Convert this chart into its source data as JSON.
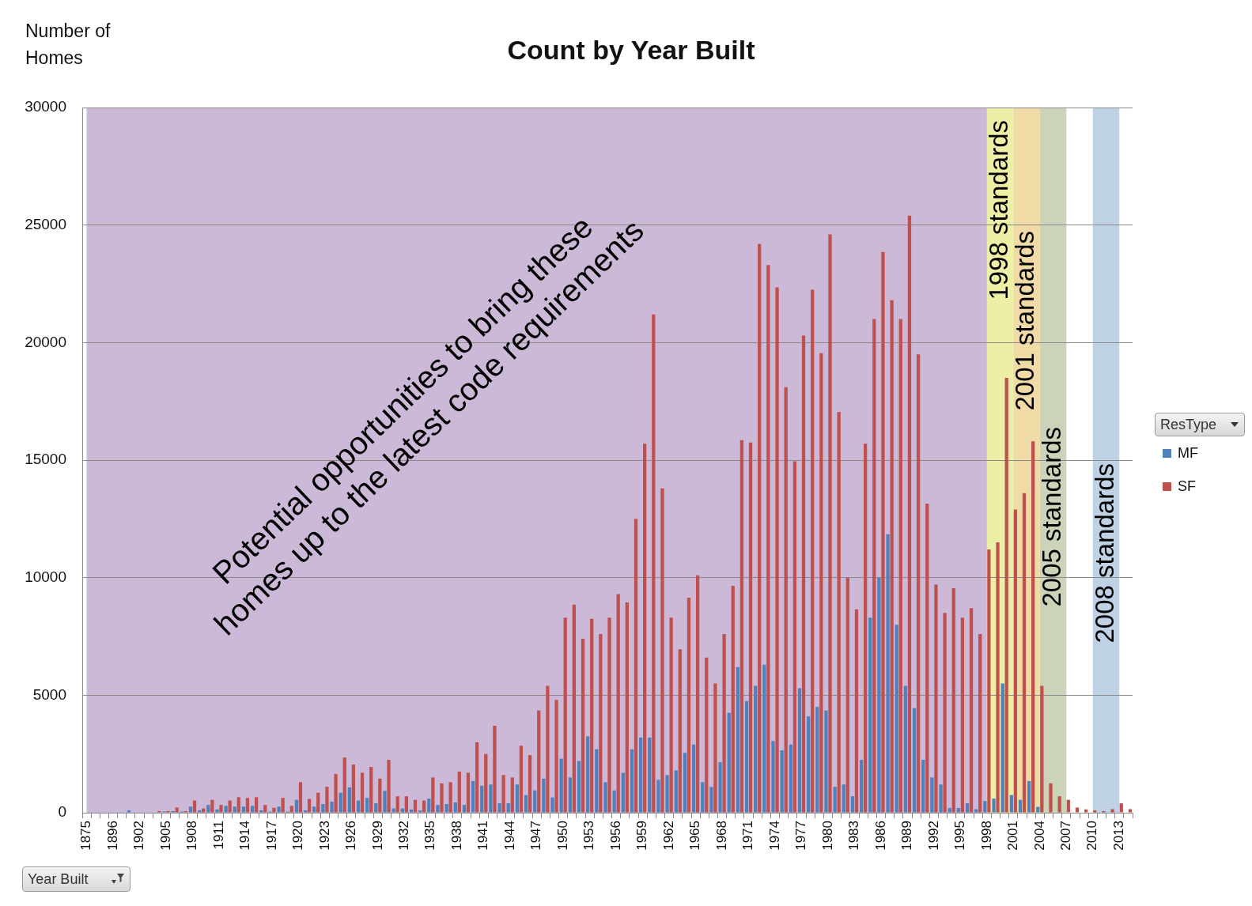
{
  "chart_data": {
    "type": "bar",
    "title": "Count by Year Built",
    "ylabel": "Number of Homes",
    "xlabel": "Year Built",
    "legend_title": "ResType",
    "legend": "right",
    "grid": "y",
    "categories": [
      "1875",
      null,
      null,
      "1896",
      null,
      null,
      "1902",
      null,
      null,
      "1905",
      null,
      null,
      "1908",
      null,
      null,
      "1911",
      null,
      null,
      "1914",
      null,
      null,
      "1917",
      null,
      null,
      "1920",
      null,
      null,
      "1923",
      null,
      null,
      "1926",
      null,
      null,
      "1929",
      null,
      null,
      "1932",
      null,
      null,
      "1935",
      null,
      null,
      "1938",
      null,
      null,
      "1941",
      null,
      null,
      "1944",
      null,
      null,
      "1947",
      null,
      null,
      "1950",
      null,
      null,
      "1953",
      null,
      null,
      "1956",
      null,
      null,
      "1959",
      null,
      null,
      "1962",
      null,
      null,
      "1965",
      null,
      null,
      "1968",
      null,
      null,
      "1971",
      null,
      null,
      "1974",
      null,
      null,
      "1977",
      null,
      null,
      "1980",
      null,
      null,
      "1983",
      null,
      null,
      "1986",
      null,
      null,
      "1989",
      null,
      null,
      "1992",
      null,
      null,
      "1995",
      null,
      null,
      "1998",
      null,
      null,
      "2001",
      null,
      null,
      "2004",
      null,
      null,
      "2007",
      null,
      null,
      "2010",
      null,
      null,
      "2013",
      null
    ],
    "series": [
      {
        "name": "MF",
        "color": "#4f81bd",
        "values": [
          0,
          0,
          0,
          0,
          0,
          100,
          0,
          0,
          0,
          50,
          70,
          50,
          260,
          100,
          330,
          140,
          290,
          260,
          260,
          290,
          100,
          50,
          260,
          50,
          550,
          100,
          260,
          370,
          470,
          850,
          1080,
          520,
          630,
          400,
          930,
          180,
          180,
          140,
          100,
          600,
          330,
          370,
          440,
          330,
          1350,
          1150,
          1200,
          400,
          400,
          1200,
          750,
          950,
          1450,
          650,
          2300,
          1500,
          2200,
          3250,
          2700,
          1300,
          950,
          1700,
          2700,
          3200,
          3200,
          1400,
          1600,
          1800,
          2550,
          2900,
          1300,
          1100,
          2150,
          4250,
          6200,
          4750,
          5400,
          6300,
          3050,
          2650,
          2900,
          5300,
          4100,
          4500,
          4350,
          1100,
          1200,
          700,
          2250,
          8300,
          10000,
          11850,
          8000,
          5400,
          4450,
          2250,
          1500,
          1200,
          200,
          200,
          400,
          150,
          500,
          600,
          5500,
          750,
          550,
          1350,
          250,
          0,
          0,
          0,
          0,
          0,
          0,
          0,
          0,
          0,
          0
        ]
      },
      {
        "name": "SF",
        "color": "#c0504d",
        "values": [
          0,
          0,
          0,
          0,
          0,
          0,
          0,
          0,
          70,
          70,
          220,
          70,
          520,
          180,
          550,
          330,
          520,
          660,
          630,
          660,
          330,
          210,
          630,
          290,
          1300,
          590,
          850,
          1100,
          1650,
          2350,
          2050,
          1700,
          1950,
          1450,
          2250,
          700,
          700,
          550,
          520,
          1500,
          1250,
          1300,
          1750,
          1700,
          3000,
          2500,
          3700,
          1600,
          1500,
          2850,
          2450,
          4350,
          5400,
          4800,
          8300,
          8850,
          7400,
          8250,
          7600,
          8300,
          9300,
          8950,
          12500,
          15700,
          21200,
          13800,
          8300,
          6950,
          9150,
          10100,
          6600,
          5500,
          7600,
          9650,
          15850,
          15750,
          24200,
          23300,
          22350,
          18100,
          14950,
          20300,
          22250,
          19550,
          24600,
          17050,
          10000,
          8650,
          15700,
          21000,
          23850,
          21800,
          21000,
          25400,
          19500,
          13150,
          9700,
          8500,
          9550,
          8300,
          8700,
          7600,
          11200,
          11500,
          18500,
          12900,
          13600,
          15800,
          5400,
          1250,
          700,
          550,
          220,
          140,
          100,
          70,
          150,
          400,
          150
        ]
      }
    ],
    "ylim": [
      0,
      30000
    ],
    "yticks": [
      0,
      5000,
      10000,
      15000,
      20000,
      25000,
      30000
    ],
    "bands": [
      {
        "axis": "x",
        "from": "1875",
        "to": "1998",
        "label": "Potential opportunities to bring these homes up to the latest code requirements",
        "color": "#cbb9d7"
      },
      {
        "axis": "x",
        "from": "1998",
        "to": "2001",
        "label": "1998 standards",
        "color": "#eeefa6"
      },
      {
        "axis": "x",
        "from": "2001",
        "to": "2004",
        "label": "2001 standards",
        "color": "#f0dba6"
      },
      {
        "axis": "x",
        "from": "2004",
        "to": "2007",
        "label": "2005 standards",
        "color": "#cbd3b8"
      },
      {
        "axis": "x",
        "from": "2010",
        "to": "2013",
        "label": "2008 standards",
        "color": "#bfd1e5"
      }
    ]
  }
}
